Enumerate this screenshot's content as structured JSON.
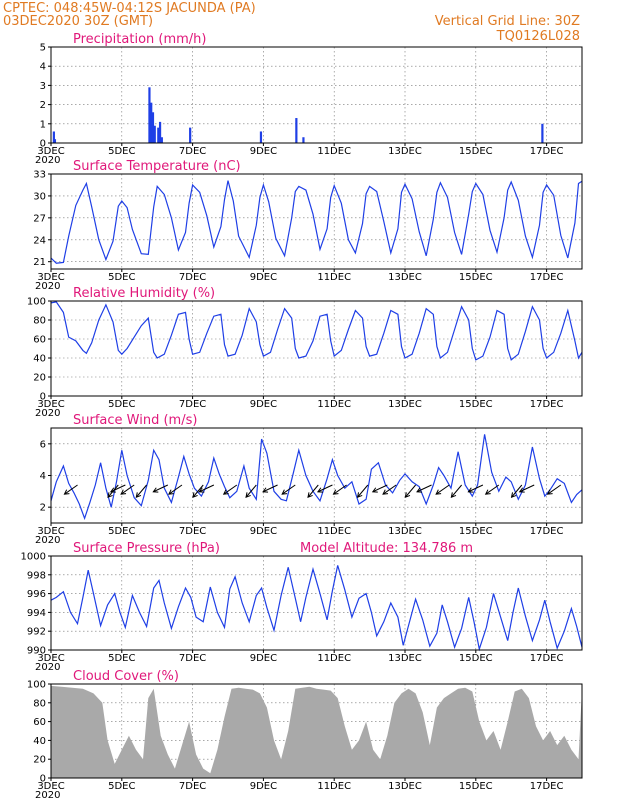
{
  "header": {
    "line1": "CPTEC:   048:45W-04:12S   JACUNDA (PA)",
    "line2": "03DEC2020 30Z (GMT)",
    "right1": "Vertical Grid Line: 30Z",
    "right2": "TQ0126L028"
  },
  "colors": {
    "header": "#e07a22",
    "title": "#e0187a",
    "series": "#1f3fe6",
    "cloud": "#a9a9a9"
  },
  "x_axis": {
    "ticks": [
      "3DEC",
      "5DEC",
      "7DEC",
      "9DEC",
      "11DEC",
      "13DEC",
      "15DEC",
      "17DEC"
    ],
    "year_label": "2020"
  },
  "chart_data": [
    {
      "id": "precip",
      "type": "bar",
      "title": "Precipitation (mm/h)",
      "ylim": [
        0,
        5
      ],
      "yticks": [
        0,
        1,
        2,
        3,
        4,
        5
      ],
      "x_days": [
        0.05,
        0.08,
        2.75,
        2.8,
        2.85,
        2.9,
        3.0,
        3.05,
        3.1,
        3.9,
        5.9,
        6.9,
        7.1,
        13.85
      ],
      "values": [
        0.6,
        0.2,
        2.9,
        2.1,
        1.6,
        0.9,
        0.8,
        1.1,
        0.3,
        0.8,
        0.6,
        1.3,
        0.3,
        1.0
      ]
    },
    {
      "id": "temp",
      "type": "line",
      "title": "Surface Temperature (nC)",
      "ylim": [
        20,
        33
      ],
      "yticks": [
        21,
        24,
        27,
        30,
        33
      ],
      "x_days": [
        0,
        0.15,
        0.35,
        0.5,
        0.7,
        0.9,
        1.0,
        1.15,
        1.35,
        1.55,
        1.75,
        1.9,
        2.0,
        2.15,
        2.3,
        2.55,
        2.75,
        2.9,
        3.0,
        3.2,
        3.4,
        3.6,
        3.8,
        3.9,
        4.0,
        4.2,
        4.4,
        4.6,
        4.8,
        4.9,
        5.0,
        5.15,
        5.3,
        5.6,
        5.8,
        5.9,
        6.0,
        6.15,
        6.35,
        6.6,
        6.8,
        6.9,
        7.0,
        7.2,
        7.4,
        7.6,
        7.8,
        7.9,
        8.0,
        8.2,
        8.4,
        8.6,
        8.8,
        8.9,
        9.0,
        9.2,
        9.4,
        9.6,
        9.8,
        9.9,
        10.0,
        10.2,
        10.4,
        10.6,
        10.8,
        10.9,
        11.0,
        11.2,
        11.4,
        11.6,
        11.8,
        11.9,
        12.0,
        12.2,
        12.4,
        12.6,
        12.8,
        12.9,
        13.0,
        13.2,
        13.4,
        13.6,
        13.8,
        13.9,
        14.0,
        14.2,
        14.4,
        14.6,
        14.8,
        14.9,
        15.0
      ],
      "values": [
        21.5,
        20.8,
        20.9,
        24.5,
        28.7,
        30.8,
        31.7,
        28.5,
        24.0,
        21.3,
        23.8,
        28.6,
        29.3,
        28.4,
        25.4,
        22.1,
        22.0,
        28.5,
        31.3,
        30.2,
        27.0,
        22.6,
        25.0,
        29.0,
        31.5,
        30.5,
        27.3,
        23.0,
        25.8,
        29.5,
        32.1,
        29.3,
        24.5,
        21.6,
        26.0,
        29.8,
        31.5,
        29.2,
        24.2,
        21.8,
        27.0,
        30.6,
        31.3,
        30.8,
        27.5,
        22.7,
        25.5,
        29.8,
        31.4,
        29.0,
        24.0,
        22.2,
        26.2,
        30.3,
        31.3,
        30.6,
        26.5,
        22.2,
        25.5,
        30.5,
        31.6,
        29.6,
        25.1,
        21.8,
        26.8,
        30.5,
        31.8,
        29.8,
        25.0,
        22.0,
        27.5,
        30.6,
        31.7,
        30.2,
        25.3,
        22.3,
        27.0,
        30.8,
        31.9,
        29.4,
        24.5,
        21.6,
        26.0,
        30.5,
        31.5,
        30.1,
        24.6,
        21.5,
        26.3,
        31.7,
        32.0
      ]
    },
    {
      "id": "rh",
      "type": "line",
      "title": "Relative Humidity (%)",
      "ylim": [
        0,
        100
      ],
      "yticks": [
        0,
        20,
        40,
        60,
        80,
        100
      ],
      "x_days": [
        0,
        0.15,
        0.35,
        0.5,
        0.7,
        0.9,
        1.0,
        1.15,
        1.35,
        1.55,
        1.75,
        1.9,
        2.0,
        2.15,
        2.35,
        2.55,
        2.75,
        2.9,
        3.0,
        3.2,
        3.4,
        3.6,
        3.8,
        3.9,
        4.0,
        4.2,
        4.4,
        4.6,
        4.8,
        4.9,
        5.0,
        5.2,
        5.4,
        5.6,
        5.8,
        5.9,
        6.0,
        6.2,
        6.4,
        6.6,
        6.8,
        6.9,
        7.0,
        7.2,
        7.4,
        7.6,
        7.8,
        7.9,
        8.0,
        8.2,
        8.4,
        8.6,
        8.8,
        8.9,
        9.0,
        9.2,
        9.4,
        9.6,
        9.8,
        9.9,
        10.0,
        10.2,
        10.4,
        10.6,
        10.8,
        10.9,
        11.0,
        11.2,
        11.4,
        11.6,
        11.8,
        11.9,
        12.0,
        12.2,
        12.4,
        12.6,
        12.8,
        12.9,
        13.0,
        13.2,
        13.4,
        13.6,
        13.8,
        13.9,
        14.0,
        14.2,
        14.4,
        14.6,
        14.8,
        14.9,
        15.0
      ],
      "values": [
        98,
        99,
        88,
        62,
        58,
        48,
        45,
        56,
        80,
        96,
        78,
        48,
        44,
        50,
        62,
        74,
        82,
        46,
        40,
        44,
        64,
        86,
        88,
        60,
        44,
        46,
        66,
        84,
        86,
        54,
        42,
        44,
        64,
        92,
        78,
        54,
        42,
        46,
        70,
        92,
        82,
        50,
        40,
        42,
        58,
        84,
        86,
        58,
        42,
        48,
        70,
        90,
        82,
        52,
        42,
        44,
        66,
        90,
        86,
        52,
        40,
        44,
        66,
        92,
        86,
        52,
        40,
        46,
        70,
        94,
        80,
        50,
        38,
        42,
        62,
        90,
        86,
        50,
        38,
        44,
        68,
        94,
        80,
        50,
        40,
        46,
        66,
        90,
        58,
        40,
        46
      ]
    },
    {
      "id": "wind",
      "type": "line",
      "title": "Surface Wind (m/s)",
      "ylim": [
        1,
        7
      ],
      "yticks": [
        2,
        4,
        6
      ],
      "x_days": [
        0,
        0.15,
        0.35,
        0.5,
        0.65,
        0.8,
        0.95,
        1.1,
        1.25,
        1.4,
        1.55,
        1.7,
        1.85,
        2.0,
        2.15,
        2.35,
        2.55,
        2.75,
        2.9,
        3.05,
        3.2,
        3.4,
        3.6,
        3.75,
        3.9,
        4.05,
        4.25,
        4.45,
        4.6,
        4.75,
        4.9,
        5.05,
        5.25,
        5.45,
        5.6,
        5.8,
        5.95,
        6.1,
        6.3,
        6.5,
        6.65,
        6.85,
        7.0,
        7.2,
        7.4,
        7.6,
        7.8,
        7.95,
        8.1,
        8.3,
        8.5,
        8.7,
        8.9,
        9.05,
        9.25,
        9.45,
        9.65,
        9.85,
        10.0,
        10.2,
        10.4,
        10.6,
        10.8,
        10.95,
        11.1,
        11.3,
        11.5,
        11.7,
        11.9,
        12.05,
        12.25,
        12.45,
        12.65,
        12.85,
        13.0,
        13.2,
        13.4,
        13.6,
        13.8,
        13.95,
        14.1,
        14.3,
        14.5,
        14.7,
        14.85,
        15.0
      ],
      "values": [
        2.4,
        3.6,
        4.6,
        3.5,
        2.9,
        2.2,
        1.3,
        2.3,
        3.4,
        4.8,
        3.2,
        2.0,
        3.6,
        5.6,
        4.0,
        2.6,
        2.1,
        3.7,
        5.6,
        5.0,
        3.2,
        2.3,
        3.9,
        5.2,
        4.1,
        3.2,
        2.7,
        3.6,
        5.1,
        4.1,
        3.3,
        2.6,
        3.0,
        4.6,
        3.2,
        2.5,
        6.3,
        5.4,
        3.0,
        2.5,
        2.4,
        4.2,
        5.6,
        4.0,
        3.0,
        2.4,
        3.8,
        5.0,
        4.0,
        3.2,
        3.6,
        2.2,
        2.5,
        4.4,
        4.8,
        3.4,
        2.9,
        3.7,
        4.1,
        3.6,
        3.3,
        2.2,
        3.4,
        4.5,
        4.0,
        3.2,
        5.5,
        3.4,
        2.7,
        3.4,
        6.6,
        4.2,
        3.0,
        3.9,
        3.6,
        2.5,
        3.4,
        5.8,
        3.8,
        2.7,
        3.1,
        3.8,
        3.5,
        2.3,
        2.8,
        3.1
      ],
      "arrows_x_days": [
        0.75,
        1.9,
        2.1,
        2.35,
        2.7,
        3.3,
        3.7,
        4.3,
        4.6,
        5.25,
        5.8,
        6.4,
        6.9,
        7.55,
        7.95,
        8.35,
        8.95,
        9.5,
        9.75,
        10.3,
        10.75,
        11.25,
        11.6,
        12.2,
        12.65,
        13.3,
        13.65,
        14.4
      ]
    },
    {
      "id": "pressure",
      "type": "line",
      "title": "Surface Pressure (hPa)",
      "subtitle": "Model Altitude: 134.786 m",
      "ylim": [
        990,
        1000
      ],
      "yticks": [
        990,
        992,
        994,
        996,
        998,
        1000
      ],
      "x_days": [
        0,
        0.15,
        0.35,
        0.55,
        0.75,
        0.9,
        1.05,
        1.2,
        1.4,
        1.6,
        1.8,
        1.95,
        2.1,
        2.3,
        2.5,
        2.7,
        2.9,
        3.05,
        3.2,
        3.4,
        3.6,
        3.8,
        3.95,
        4.1,
        4.3,
        4.5,
        4.7,
        4.9,
        5.05,
        5.2,
        5.4,
        5.6,
        5.8,
        5.95,
        6.1,
        6.3,
        6.5,
        6.7,
        6.9,
        7.05,
        7.2,
        7.4,
        7.6,
        7.8,
        7.95,
        8.1,
        8.3,
        8.5,
        8.7,
        8.9,
        9.05,
        9.2,
        9.4,
        9.6,
        9.8,
        9.95,
        10.1,
        10.3,
        10.5,
        10.7,
        10.9,
        11.05,
        11.2,
        11.4,
        11.6,
        11.8,
        11.95,
        12.1,
        12.3,
        12.5,
        12.7,
        12.9,
        13.05,
        13.2,
        13.4,
        13.6,
        13.8,
        13.95,
        14.1,
        14.3,
        14.5,
        14.7,
        14.85,
        15.0
      ],
      "values": [
        995.3,
        995.6,
        996.2,
        994.0,
        992.8,
        995.6,
        998.5,
        996.0,
        992.6,
        994.8,
        996.0,
        994.0,
        992.4,
        995.8,
        994.0,
        992.5,
        996.6,
        997.4,
        995.0,
        992.3,
        994.6,
        996.6,
        995.6,
        993.5,
        993.0,
        996.7,
        994.0,
        992.4,
        996.5,
        997.8,
        995.0,
        993.0,
        995.8,
        996.6,
        994.5,
        992.1,
        995.8,
        998.8,
        995.5,
        993.0,
        995.6,
        998.6,
        996.0,
        993.2,
        996.3,
        999.0,
        996.4,
        993.5,
        995.5,
        996.0,
        994.0,
        991.5,
        993.0,
        995.0,
        993.5,
        990.5,
        992.6,
        995.4,
        993.2,
        990.4,
        991.8,
        994.8,
        993.0,
        990.3,
        992.3,
        995.6,
        993.0,
        990.1,
        992.4,
        996.0,
        993.5,
        991.0,
        994.0,
        996.6,
        993.6,
        991.0,
        993.2,
        995.3,
        993.0,
        990.2,
        992.0,
        994.4,
        992.5,
        990.3
      ]
    },
    {
      "id": "cloud",
      "type": "area",
      "title": "Cloud Cover (%)",
      "ylim": [
        0,
        100
      ],
      "yticks": [
        0,
        20,
        40,
        60,
        80,
        100
      ],
      "x_days": [
        0,
        0.3,
        0.6,
        0.9,
        1.2,
        1.45,
        1.6,
        1.8,
        2.0,
        2.2,
        2.4,
        2.6,
        2.75,
        2.9,
        3.1,
        3.3,
        3.5,
        3.7,
        3.9,
        4.1,
        4.3,
        4.5,
        4.7,
        4.9,
        5.1,
        5.3,
        5.5,
        5.7,
        5.9,
        6.1,
        6.3,
        6.5,
        6.7,
        6.9,
        7.1,
        7.3,
        7.5,
        7.7,
        7.9,
        8.1,
        8.3,
        8.5,
        8.7,
        8.9,
        9.1,
        9.3,
        9.5,
        9.7,
        9.9,
        10.1,
        10.3,
        10.5,
        10.7,
        10.9,
        11.1,
        11.3,
        11.5,
        11.7,
        11.9,
        12.1,
        12.3,
        12.5,
        12.7,
        12.9,
        13.1,
        13.3,
        13.5,
        13.7,
        13.9,
        14.1,
        14.3,
        14.5,
        14.7,
        14.9,
        15.0
      ],
      "values": [
        98,
        97,
        96,
        95,
        90,
        80,
        40,
        15,
        30,
        45,
        30,
        20,
        85,
        95,
        45,
        25,
        10,
        35,
        60,
        25,
        10,
        5,
        30,
        65,
        95,
        96,
        95,
        94,
        90,
        75,
        40,
        20,
        50,
        95,
        96,
        97,
        95,
        94,
        93,
        85,
        55,
        30,
        40,
        60,
        30,
        20,
        45,
        80,
        90,
        95,
        90,
        70,
        35,
        75,
        85,
        90,
        95,
        96,
        92,
        60,
        40,
        50,
        30,
        60,
        92,
        95,
        85,
        55,
        40,
        50,
        35,
        45,
        30,
        20,
        95
      ]
    }
  ]
}
